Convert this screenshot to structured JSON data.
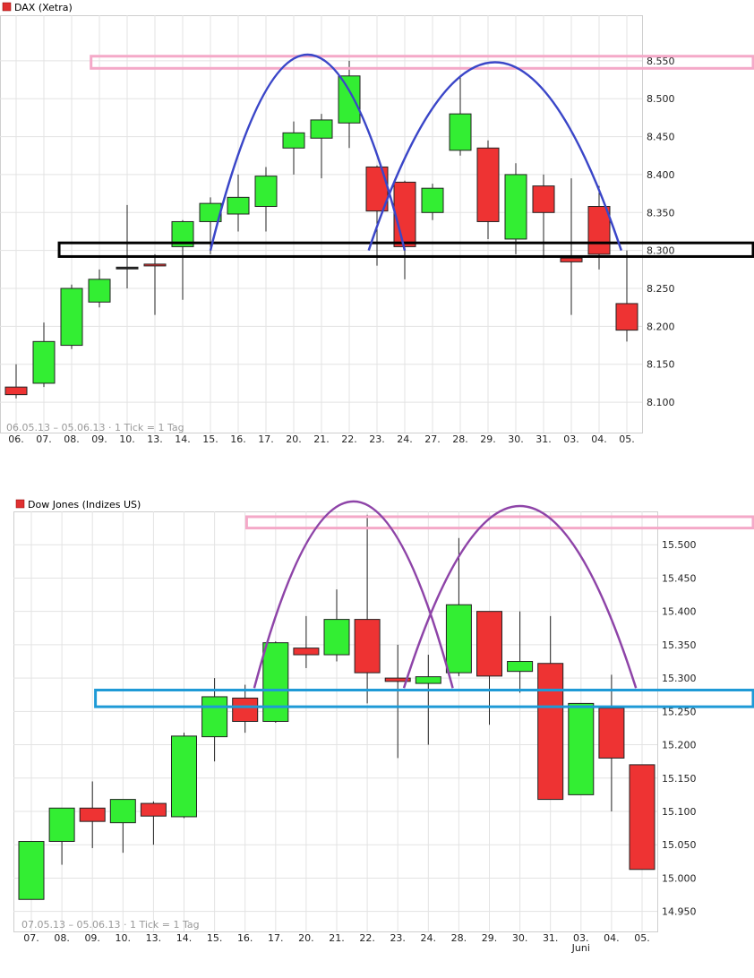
{
  "chart_data": [
    {
      "type": "candlestick",
      "title": "DAX (Xetra)",
      "info": "06.05.13 – 05.06.13 · 1 Tick = 1 Tag",
      "x_labels": [
        "06.",
        "07.",
        "08.",
        "09.",
        "10.",
        "13.",
        "14.",
        "15.",
        "16.",
        "17.",
        "20.",
        "21.",
        "22.",
        "23.",
        "24.",
        "27.",
        "28.",
        "29.",
        "30.",
        "31.",
        "03.",
        "04.",
        "05."
      ],
      "ylim": [
        8060,
        8610
      ],
      "y_ticks": [
        8100,
        8150,
        8200,
        8250,
        8300,
        8350,
        8400,
        8450,
        8500,
        8550
      ],
      "y_tick_labels": [
        "8.100",
        "8.150",
        "8.200",
        "8.250",
        "8.300",
        "8.350",
        "8.400",
        "8.450",
        "8.500",
        "8.550"
      ],
      "candles": [
        {
          "open": 8120,
          "high": 8150,
          "low": 8105,
          "close": 8110,
          "color": "red"
        },
        {
          "open": 8125,
          "high": 8205,
          "low": 8120,
          "close": 8180,
          "color": "green"
        },
        {
          "open": 8175,
          "high": 8255,
          "low": 8170,
          "close": 8250,
          "color": "green"
        },
        {
          "open": 8232,
          "high": 8275,
          "low": 8225,
          "close": 8262,
          "color": "green"
        },
        {
          "open": 8278,
          "high": 8360,
          "low": 8250,
          "close": 8278,
          "color": "doji"
        },
        {
          "open": 8282,
          "high": 8295,
          "low": 8215,
          "close": 8280,
          "color": "red"
        },
        {
          "open": 8305,
          "high": 8340,
          "low": 8235,
          "close": 8338,
          "color": "green"
        },
        {
          "open": 8338,
          "high": 8370,
          "low": 8295,
          "close": 8362,
          "color": "green"
        },
        {
          "open": 8348,
          "high": 8400,
          "low": 8325,
          "close": 8370,
          "color": "green"
        },
        {
          "open": 8358,
          "high": 8410,
          "low": 8325,
          "close": 8398,
          "color": "green"
        },
        {
          "open": 8435,
          "high": 8470,
          "low": 8400,
          "close": 8455,
          "color": "green"
        },
        {
          "open": 8448,
          "high": 8480,
          "low": 8395,
          "close": 8472,
          "color": "green"
        },
        {
          "open": 8468,
          "high": 8550,
          "low": 8435,
          "close": 8530,
          "color": "green"
        },
        {
          "open": 8410,
          "high": 8412,
          "low": 8280,
          "close": 8352,
          "color": "red"
        },
        {
          "open": 8390,
          "high": 8392,
          "low": 8262,
          "close": 8305,
          "color": "red"
        },
        {
          "open": 8350,
          "high": 8388,
          "low": 8340,
          "close": 8382,
          "color": "green"
        },
        {
          "open": 8432,
          "high": 8530,
          "low": 8425,
          "close": 8480,
          "color": "green"
        },
        {
          "open": 8435,
          "high": 8445,
          "low": 8315,
          "close": 8338,
          "color": "red"
        },
        {
          "open": 8315,
          "high": 8415,
          "low": 8295,
          "close": 8400,
          "color": "green"
        },
        {
          "open": 8385,
          "high": 8400,
          "low": 8290,
          "close": 8350,
          "color": "red"
        },
        {
          "open": 8290,
          "high": 8395,
          "low": 8215,
          "close": 8285,
          "color": "red"
        },
        {
          "open": 8358,
          "high": 8385,
          "low": 8275,
          "close": 8295,
          "color": "red"
        },
        {
          "open": 8230,
          "high": 8300,
          "low": 8180,
          "close": 8195,
          "color": "red"
        }
      ],
      "annotations": {
        "arc_color": "#3a46c8",
        "resistance_color": "#f4a9c8",
        "support_color": "#000000",
        "resistance_band": [
          8540,
          8556
        ],
        "support_band": [
          8292,
          8310
        ],
        "arcs": [
          {
            "x_from": 7.0,
            "x_to": 14.0,
            "y_base": 8300,
            "y_top": 8558
          },
          {
            "x_from": 12.7,
            "x_to": 21.8,
            "y_base": 8300,
            "y_top": 8548
          }
        ],
        "support_x_start": 1.55,
        "resistance_x_start": 2.7
      }
    },
    {
      "type": "candlestick",
      "title": "Dow Jones (Indizes US)",
      "info": "07.05.13 – 05.06.13 · 1 Tick = 1 Tag",
      "x_labels": [
        "07.",
        "08.",
        "09.",
        "10.",
        "13.",
        "14.",
        "15.",
        "16.",
        "17.",
        "20.",
        "21.",
        "22.",
        "23.",
        "24.",
        "28.",
        "29.",
        "30.",
        "31.",
        "03.",
        "04.",
        "05."
      ],
      "x_sublabel": {
        "index": 18,
        "text": "Juni"
      },
      "ylim": [
        14920,
        15550
      ],
      "y_ticks": [
        14950,
        15000,
        15050,
        15100,
        15150,
        15200,
        15250,
        15300,
        15350,
        15400,
        15450,
        15500
      ],
      "y_tick_labels": [
        "14.950",
        "15.000",
        "15.050",
        "15.100",
        "15.150",
        "15.200",
        "15.250",
        "15.300",
        "15.350",
        "15.400",
        "15.450",
        "15.500"
      ],
      "candles": [
        {
          "open": 14968,
          "high": 15055,
          "low": 14968,
          "close": 15055,
          "color": "green"
        },
        {
          "open": 15055,
          "high": 15105,
          "low": 15020,
          "close": 15105,
          "color": "green"
        },
        {
          "open": 15105,
          "high": 15145,
          "low": 15045,
          "close": 15085,
          "color": "red"
        },
        {
          "open": 15083,
          "high": 15118,
          "low": 15038,
          "close": 15118,
          "color": "green"
        },
        {
          "open": 15112,
          "high": 15115,
          "low": 15050,
          "close": 15093,
          "color": "red"
        },
        {
          "open": 15092,
          "high": 15218,
          "low": 15090,
          "close": 15213,
          "color": "green"
        },
        {
          "open": 15212,
          "high": 15300,
          "low": 15175,
          "close": 15272,
          "color": "green"
        },
        {
          "open": 15270,
          "high": 15290,
          "low": 15218,
          "close": 15235,
          "color": "red"
        },
        {
          "open": 15235,
          "high": 15355,
          "low": 15233,
          "close": 15353,
          "color": "green"
        },
        {
          "open": 15345,
          "high": 15393,
          "low": 15315,
          "close": 15335,
          "color": "red"
        },
        {
          "open": 15335,
          "high": 15433,
          "low": 15325,
          "close": 15388,
          "color": "green"
        },
        {
          "open": 15388,
          "high": 15545,
          "low": 15262,
          "close": 15308,
          "color": "red"
        },
        {
          "open": 15300,
          "high": 15350,
          "low": 15180,
          "close": 15295,
          "color": "red"
        },
        {
          "open": 15292,
          "high": 15335,
          "low": 15200,
          "close": 15302,
          "color": "green"
        },
        {
          "open": 15308,
          "high": 15510,
          "low": 15303,
          "close": 15410,
          "color": "green"
        },
        {
          "open": 15400,
          "high": 15400,
          "low": 15230,
          "close": 15303,
          "color": "red"
        },
        {
          "open": 15310,
          "high": 15400,
          "low": 15278,
          "close": 15325,
          "color": "green"
        },
        {
          "open": 15322,
          "high": 15393,
          "low": 15118,
          "close": 15118,
          "color": "red"
        },
        {
          "open": 15125,
          "high": 15262,
          "low": 15125,
          "close": 15262,
          "color": "green"
        },
        {
          "open": 15255,
          "high": 15305,
          "low": 15100,
          "close": 15180,
          "color": "red"
        },
        {
          "open": 15170,
          "high": 15170,
          "low": 15013,
          "close": 15013,
          "color": "red"
        }
      ],
      "annotations": {
        "arc_color": "#8e44a8",
        "resistance_color": "#f4a9c8",
        "support_color": "#1e9ad6",
        "resistance_band": [
          15525,
          15542
        ],
        "support_band": [
          15257,
          15282
        ],
        "arcs": [
          {
            "x_from": 7.3,
            "x_to": 13.8,
            "y_base": 15285,
            "y_top": 15565
          },
          {
            "x_from": 12.2,
            "x_to": 19.8,
            "y_base": 15285,
            "y_top": 15558
          }
        ],
        "support_x_start": 2.1,
        "resistance_x_start": 7.05
      }
    }
  ]
}
